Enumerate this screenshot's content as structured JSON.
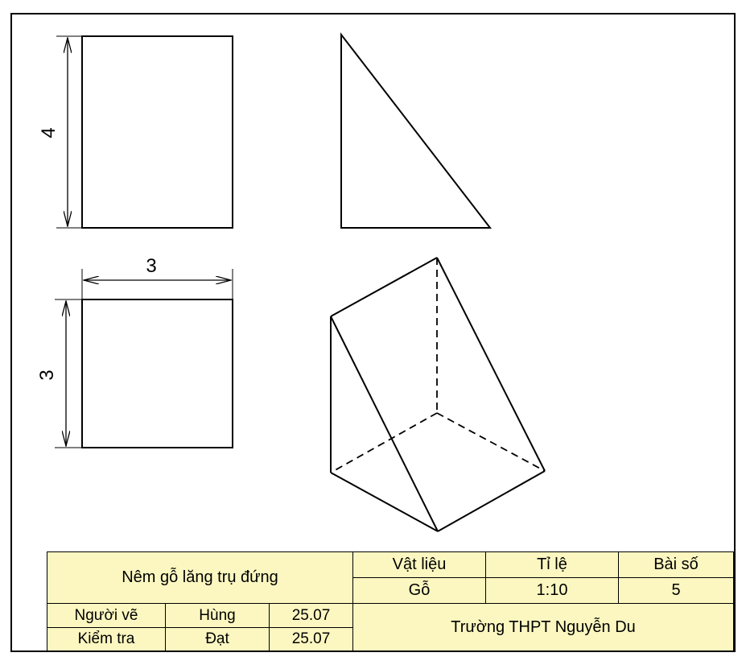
{
  "dimensions": {
    "front_height": "4",
    "top_width": "3",
    "top_height": "3"
  },
  "title_block": {
    "product_name": "Nêm gỗ lăng trụ đứng",
    "material_label": "Vật liệu",
    "material_value": "Gỗ",
    "scale_label": "Tỉ lệ",
    "scale_value": "1:10",
    "exercise_label": "Bài số",
    "exercise_value": "5",
    "drawer_label": "Người vẽ",
    "drawer_name": "Hùng",
    "drawer_date": "25.07",
    "checker_label": "Kiểm tra",
    "checker_name": "Đạt",
    "checker_date": "25.07",
    "school": "Trường THPT Nguyễn Du"
  },
  "colors": {
    "line": "#000000",
    "title_fill": "#fcf7c0",
    "frame_accent": "#3a63b0"
  }
}
